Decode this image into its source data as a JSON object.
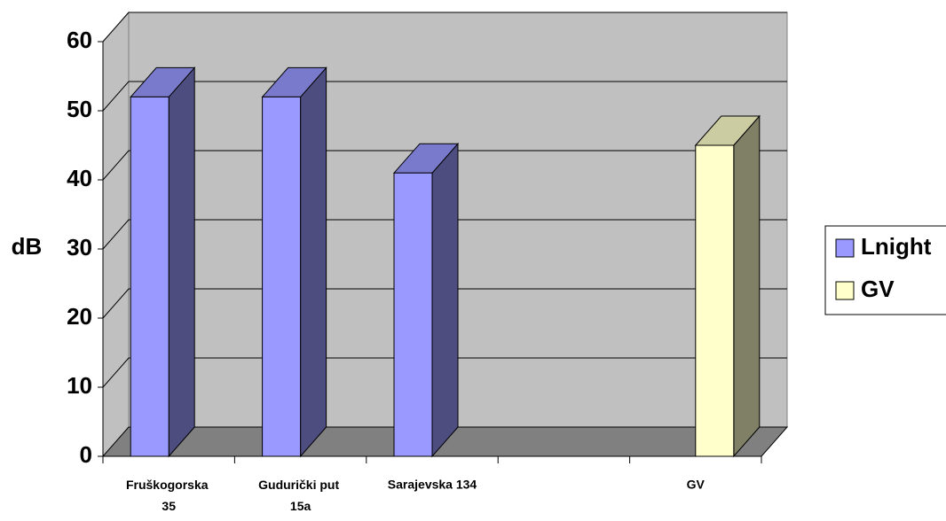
{
  "chart_data": {
    "type": "bar3d",
    "y_label": "dB",
    "categories": [
      "Fruškogorska 35",
      "Gudurički put 15a",
      "Sarajevska 134",
      null,
      "GV"
    ],
    "series": [
      {
        "name": "Lnight",
        "color": "#9999ff",
        "values": [
          52,
          52,
          41,
          null,
          null
        ]
      },
      {
        "name": "GV",
        "color": "#ffffcc",
        "values": [
          null,
          null,
          null,
          null,
          45
        ]
      }
    ],
    "ylim": [
      0,
      60
    ],
    "yticks": [
      0,
      10,
      20,
      30,
      40,
      50,
      60
    ],
    "grid": true,
    "legend": "right"
  }
}
